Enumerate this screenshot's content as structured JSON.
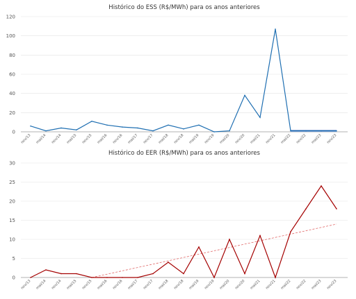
{
  "chart_data": [
    {
      "type": "line",
      "title": "Histórico do ESS (R$/MWh) para os anos anteriores",
      "xlabel": "",
      "ylabel": "",
      "ylim": [
        0,
        120
      ],
      "yticks": [
        0,
        20,
        40,
        60,
        80,
        100,
        120
      ],
      "grid": true,
      "line_color": "#1f6fb2",
      "highlight_color": "#8fa8d8",
      "categories": [
        "nov/13",
        "mai/14",
        "nov/14",
        "mai/15",
        "nov/15",
        "mai/16",
        "nov/16",
        "mai/17",
        "nov/17",
        "mai/18",
        "nov/18",
        "mai/19",
        "nov/19",
        "mai/20",
        "nov/20",
        "mai/21",
        "nov/21",
        "mai/22",
        "nov/22",
        "mai/23",
        "nov/23"
      ],
      "series": [
        {
          "values": [
            6,
            1,
            4,
            2,
            11,
            7,
            5,
            4,
            1,
            7,
            3,
            7,
            0,
            1,
            38,
            15,
            107,
            1,
            1,
            1,
            1
          ]
        }
      ]
    },
    {
      "type": "line",
      "title": "Histórico do EER (R$/MWh) para os anos anteriores",
      "xlabel": "",
      "ylabel": "",
      "ylim": [
        0,
        30
      ],
      "yticks": [
        0,
        5,
        10,
        15,
        20,
        25,
        30
      ],
      "grid": true,
      "line_color": "#a40000",
      "trend_color": "#e06666",
      "categories": [
        "nov/13",
        "mai/14",
        "nov/14",
        "mai/15",
        "nov/15",
        "mai/16",
        "nov/16",
        "mai/17",
        "nov/17",
        "mai/18",
        "nov/18",
        "mai/19",
        "nov/19",
        "mai/20",
        "nov/20",
        "mai/21",
        "nov/21",
        "mai/22",
        "nov/22",
        "mai/23",
        "nov/23"
      ],
      "series": [
        {
          "values": [
            0,
            2,
            1,
            1,
            0,
            0,
            0,
            0,
            1,
            4,
            1,
            8,
            0,
            10,
            1,
            11,
            0,
            12,
            18,
            24,
            18
          ]
        }
      ],
      "trendline": {
        "start": 0,
        "end": 14
      }
    }
  ]
}
